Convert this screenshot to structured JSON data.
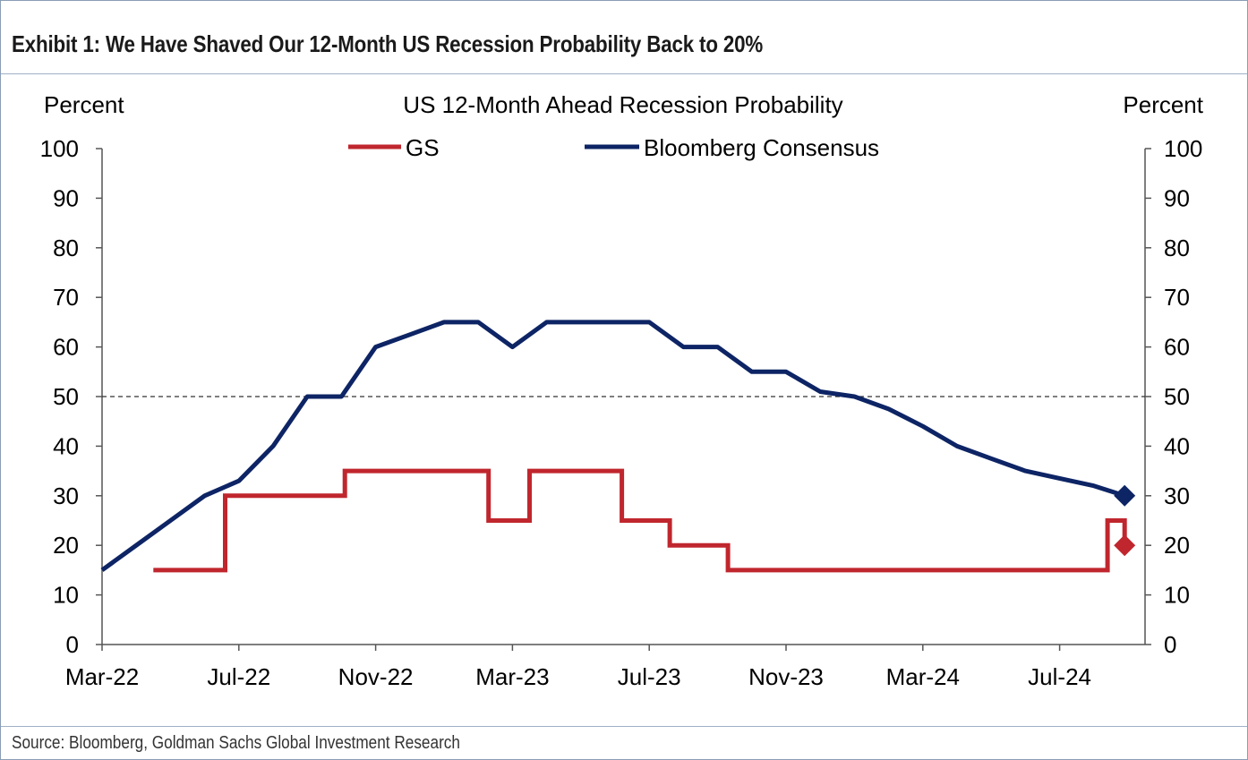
{
  "exhibit_title": "Exhibit 1: We Have Shaved Our 12-Month US Recession Probability Back to 20%",
  "source": "Source: Bloomberg, Goldman Sachs Global Investment Research",
  "colors": {
    "gs": "#c0262d",
    "bloomberg": "#0d2465",
    "reference": "#333333",
    "axis": "#555555"
  },
  "chart_data": {
    "type": "line",
    "title": "US 12-Month Ahead Recession Probability",
    "ylabel_left": "Percent",
    "ylabel_right": "Percent",
    "ylim": [
      0,
      100
    ],
    "y_ticks": [
      0,
      10,
      20,
      30,
      40,
      50,
      60,
      70,
      80,
      90,
      100
    ],
    "y_tick_labels": [
      "0",
      "10",
      "20",
      "30",
      "40",
      "50",
      "60",
      "70",
      "80",
      "90",
      "100"
    ],
    "x_unit": "months since Mar-22",
    "xlim": [
      0,
      30.5
    ],
    "x_ticks": [
      0,
      4,
      8,
      12,
      16,
      20,
      24,
      28
    ],
    "x_tick_labels": [
      "Mar-22",
      "Jul-22",
      "Nov-22",
      "Mar-23",
      "Jul-23",
      "Nov-23",
      "Mar-24",
      "Jul-24"
    ],
    "reference_line": {
      "y": 50,
      "style": "dashed"
    },
    "legend": [
      "GS",
      "Bloomberg Consensus"
    ],
    "legend_position": "top-center",
    "series": [
      {
        "name": "GS",
        "step": true,
        "points": [
          [
            1.5,
            15
          ],
          [
            3.6,
            15
          ],
          [
            3.6,
            30
          ],
          [
            7.1,
            30
          ],
          [
            7.1,
            35
          ],
          [
            11.3,
            35
          ],
          [
            11.3,
            25
          ],
          [
            12.5,
            25
          ],
          [
            12.5,
            35
          ],
          [
            15.2,
            35
          ],
          [
            15.2,
            25
          ],
          [
            16.6,
            25
          ],
          [
            16.6,
            20
          ],
          [
            18.3,
            20
          ],
          [
            18.3,
            15
          ],
          [
            29.4,
            15
          ],
          [
            29.4,
            25
          ],
          [
            29.9,
            25
          ],
          [
            29.9,
            20
          ]
        ],
        "last_value_marker": [
          29.9,
          20
        ]
      },
      {
        "name": "Bloomberg Consensus",
        "step": false,
        "points": [
          [
            0,
            15
          ],
          [
            1,
            20
          ],
          [
            2,
            25
          ],
          [
            3,
            30
          ],
          [
            4,
            33
          ],
          [
            5,
            40
          ],
          [
            6,
            50
          ],
          [
            7,
            50
          ],
          [
            8,
            60
          ],
          [
            9,
            62.5
          ],
          [
            10,
            65
          ],
          [
            11,
            65
          ],
          [
            12,
            60
          ],
          [
            13,
            65
          ],
          [
            14,
            65
          ],
          [
            15,
            65
          ],
          [
            16,
            65
          ],
          [
            17,
            60
          ],
          [
            18,
            60
          ],
          [
            19,
            55
          ],
          [
            20,
            55
          ],
          [
            21,
            51
          ],
          [
            22,
            50
          ],
          [
            23,
            47.5
          ],
          [
            24,
            44
          ],
          [
            25,
            40
          ],
          [
            26,
            37.5
          ],
          [
            27,
            35
          ],
          [
            28,
            33.5
          ],
          [
            29,
            32
          ],
          [
            29.9,
            30
          ]
        ],
        "last_value_marker": [
          29.9,
          30
        ]
      }
    ]
  }
}
